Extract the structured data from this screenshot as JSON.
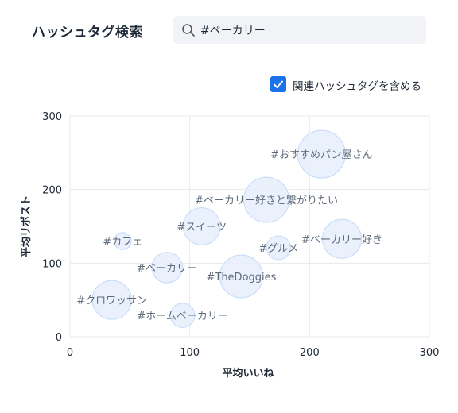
{
  "header": {
    "title": "ハッシュタグ検索",
    "search_value": "#ベーカリー",
    "search_icon": "search-icon"
  },
  "options": {
    "include_related_label": "関連ハッシュタグを含める",
    "include_related_checked": true
  },
  "colors": {
    "accent": "#1a73e8",
    "bubble_fill": "#e6effd",
    "bubble_stroke": "#c4d9f8",
    "grid": "#e6e8ec",
    "label": "#5f6b7a"
  },
  "chart_data": {
    "type": "scatter",
    "xlabel": "平均いいね",
    "ylabel": "平均リポスト",
    "xlim": [
      0,
      300
    ],
    "ylim": [
      0,
      300
    ],
    "xticks": [
      0,
      100,
      200,
      300
    ],
    "yticks": [
      0,
      100,
      200,
      300
    ],
    "grid": true,
    "points": [
      {
        "label": "#おすすめパン屋さん",
        "x": 210,
        "y": 248,
        "size": 1.0
      },
      {
        "label": "#ベーカリー好きと繋がりたい",
        "x": 164,
        "y": 186,
        "size": 0.95
      },
      {
        "label": "#スイーツ",
        "x": 110,
        "y": 150,
        "size": 0.78
      },
      {
        "label": "#カフェ",
        "x": 44,
        "y": 130,
        "size": 0.36
      },
      {
        "label": "#グルメ",
        "x": 174,
        "y": 121,
        "size": 0.5
      },
      {
        "label": "#ベーカリー好き",
        "x": 227,
        "y": 133,
        "size": 0.82
      },
      {
        "label": "#ベーカリー",
        "x": 81,
        "y": 94,
        "size": 0.64
      },
      {
        "label": "#TheDoggies",
        "x": 143,
        "y": 82,
        "size": 0.9
      },
      {
        "label": "#クロワッサン",
        "x": 35,
        "y": 50,
        "size": 0.82
      },
      {
        "label": "#ホームベーカリー",
        "x": 94,
        "y": 29,
        "size": 0.51
      }
    ]
  }
}
